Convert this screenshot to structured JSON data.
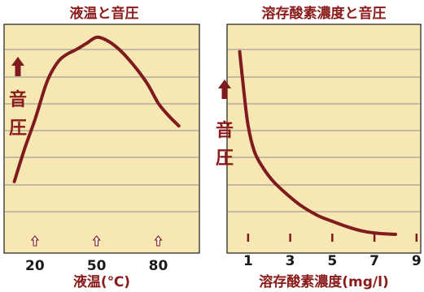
{
  "chart_data": [
    {
      "type": "line",
      "title": "液温と音圧",
      "ylabel": "音圧",
      "xlabel": "液温(℃)",
      "xticks": [
        20,
        50,
        80
      ],
      "xlim": [
        5,
        100
      ],
      "ylim": [
        0,
        10
      ],
      "grid": true,
      "series": [
        {
          "x": [
            10,
            15,
            20,
            25,
            28,
            32,
            36,
            40,
            45,
            50,
            55,
            60,
            65,
            70,
            75,
            80,
            85,
            90
          ],
          "y": [
            3.0,
            4.6,
            6.0,
            7.6,
            8.3,
            8.9,
            9.2,
            9.4,
            9.7,
            10.0,
            9.85,
            9.5,
            9.0,
            8.4,
            7.7,
            6.8,
            6.2,
            5.7
          ]
        }
      ]
    },
    {
      "type": "line",
      "title": "溶存酸素濃度と音圧",
      "ylabel": "音圧",
      "xlabel": "溶存酸素濃度(mg/l)",
      "xticks": [
        1,
        3,
        5,
        7,
        9
      ],
      "xlim": [
        0,
        9.2
      ],
      "ylim": [
        0,
        10
      ],
      "grid": true,
      "series": [
        {
          "x": [
            0.6,
            0.8,
            1.0,
            1.3,
            1.7,
            2.2,
            2.8,
            3.5,
            4.3,
            5.0,
            5.8,
            6.5,
            7.2,
            8.0
          ],
          "y": [
            9.6,
            7.6,
            5.9,
            4.6,
            3.8,
            3.1,
            2.5,
            1.9,
            1.4,
            1.1,
            0.8,
            0.6,
            0.5,
            0.45
          ]
        }
      ]
    }
  ]
}
